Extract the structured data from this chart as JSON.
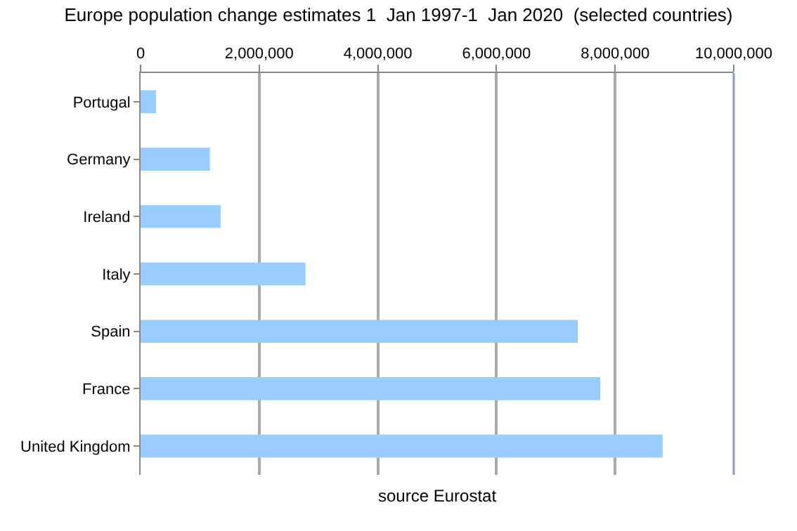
{
  "chart_data": {
    "type": "bar",
    "orientation": "horizontal",
    "title": "Europe population change estimates 1  Jan 1997-1  Jan 2020  (selected countries)",
    "categories": [
      "Portugal",
      "Germany",
      "Ireland",
      "Italy",
      "Spain",
      "France",
      "United Kingdom"
    ],
    "values": [
      260000,
      1170000,
      1350000,
      2780000,
      7370000,
      7750000,
      8800000
    ],
    "color": "#99ccff",
    "xlim": [
      0,
      10000000
    ],
    "xticks": [
      {
        "value": 0,
        "label": "0"
      },
      {
        "value": 2000000,
        "label": "2,000,000"
      },
      {
        "value": 4000000,
        "label": "4,000,000"
      },
      {
        "value": 6000000,
        "label": "6,000,000"
      },
      {
        "value": 8000000,
        "label": "8,000,000"
      },
      {
        "value": 10000000,
        "label": "10,000,000"
      }
    ],
    "grid": "x",
    "legend": false,
    "annotations": [
      "source Eurostat"
    ]
  }
}
